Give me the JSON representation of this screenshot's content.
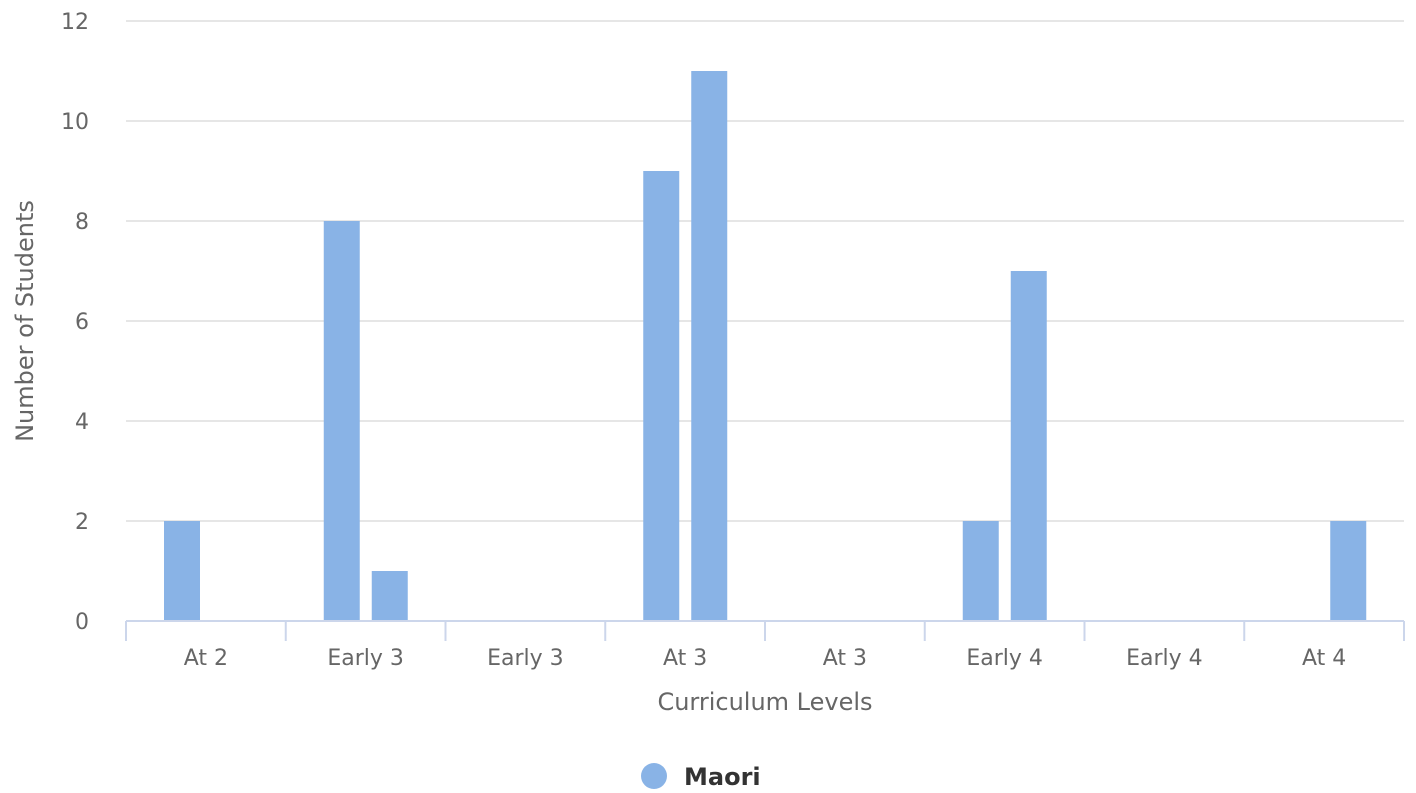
{
  "chart_data": {
    "type": "bar",
    "categories": [
      "At 2",
      "Early 3",
      "Early 3",
      "At 3",
      "At 3",
      "Early 4",
      "Early 4",
      "At 4"
    ],
    "bars": [
      {
        "category_index": 0,
        "slot": 0,
        "value": 2
      },
      {
        "category_index": 1,
        "slot": 0,
        "value": 8
      },
      {
        "category_index": 1,
        "slot": 1,
        "value": 1
      },
      {
        "category_index": 3,
        "slot": 0,
        "value": 9
      },
      {
        "category_index": 3,
        "slot": 1,
        "value": 11
      },
      {
        "category_index": 5,
        "slot": 0,
        "value": 2
      },
      {
        "category_index": 5,
        "slot": 1,
        "value": 7
      },
      {
        "category_index": 7,
        "slot": 1,
        "value": 2
      }
    ],
    "series": [
      {
        "name": "Maori",
        "color": "#89b3e6"
      }
    ],
    "xlabel": "Curriculum Levels",
    "ylabel": "Number of Students",
    "ylim": [
      0,
      12
    ],
    "yticks": [
      0,
      2,
      4,
      6,
      8,
      10,
      12
    ],
    "grid": true,
    "legend_position": "bottom-center"
  }
}
